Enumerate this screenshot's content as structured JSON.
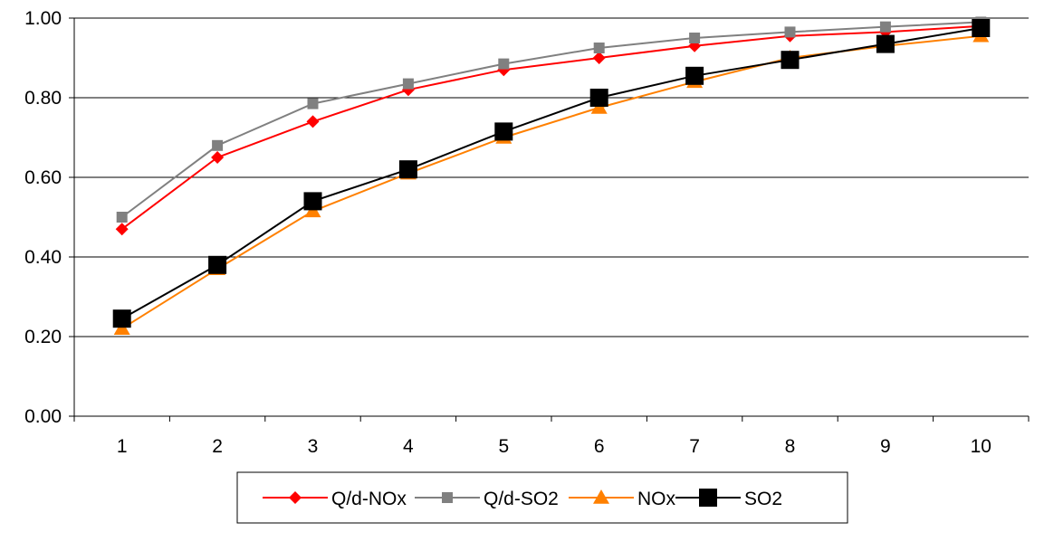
{
  "chart_data": {
    "type": "line",
    "title": "",
    "xlabel": "",
    "ylabel": "",
    "x": [
      1,
      2,
      3,
      4,
      5,
      6,
      7,
      8,
      9,
      10
    ],
    "x_tick_labels": [
      "1",
      "2",
      "3",
      "4",
      "5",
      "6",
      "7",
      "8",
      "9",
      "10"
    ],
    "ylim": [
      0.0,
      1.0
    ],
    "y_ticks": [
      0.0,
      0.2,
      0.4,
      0.6,
      0.8,
      1.0
    ],
    "y_tick_labels": [
      "0.00",
      "0.20",
      "0.40",
      "0.60",
      "0.80",
      "1.00"
    ],
    "grid": "horizontal",
    "legend_position": "bottom",
    "series": [
      {
        "name": "Q/d-NOx",
        "color": "#ff0000",
        "marker": "diamond",
        "values": [
          0.47,
          0.65,
          0.74,
          0.82,
          0.87,
          0.9,
          0.93,
          0.955,
          0.965,
          0.98
        ]
      },
      {
        "name": "Q/d-SO2",
        "color": "#808080",
        "marker": "square",
        "values": [
          0.5,
          0.68,
          0.785,
          0.835,
          0.885,
          0.925,
          0.95,
          0.965,
          0.978,
          0.99
        ]
      },
      {
        "name": "NOx",
        "color": "#ff8000",
        "marker": "triangle",
        "values": [
          0.22,
          0.37,
          0.515,
          0.61,
          0.7,
          0.775,
          0.84,
          0.9,
          0.93,
          0.955
        ]
      },
      {
        "name": "SO2",
        "color": "#000000",
        "marker": "square-large",
        "values": [
          0.245,
          0.38,
          0.54,
          0.62,
          0.715,
          0.8,
          0.855,
          0.895,
          0.935,
          0.975
        ]
      }
    ]
  }
}
